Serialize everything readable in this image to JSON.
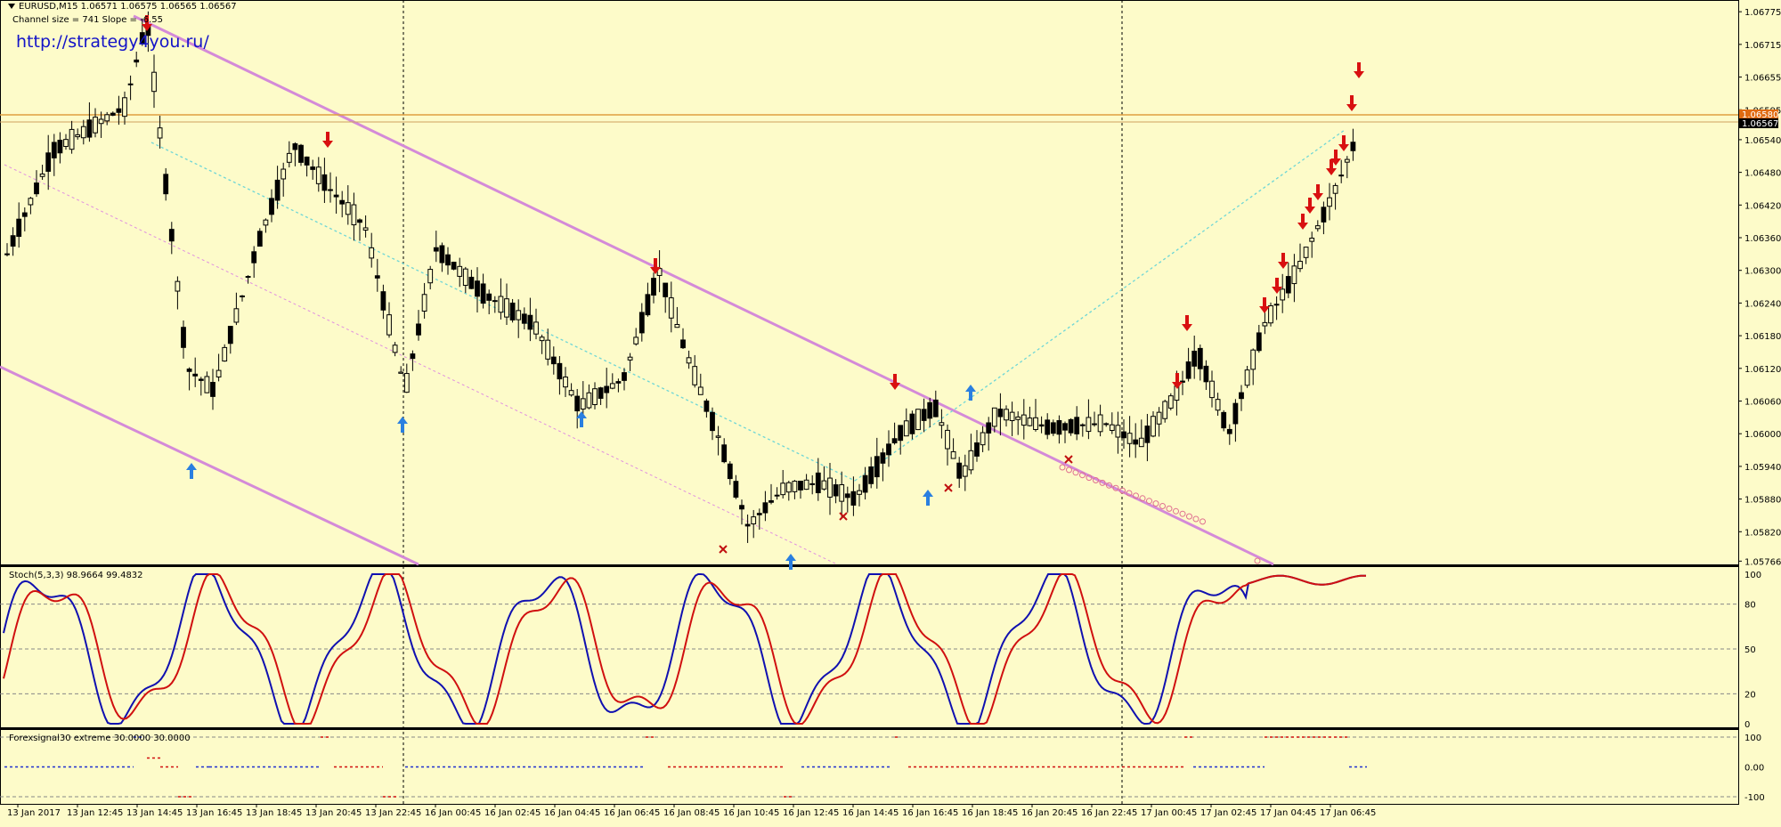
{
  "header": {
    "symbol_line": "EURUSD,M15  1.06571 1.06575 1.06565 1.06567",
    "channel_info": "Channel size = 741 Slope = -6.55",
    "website": "http://strategy4you.ru/"
  },
  "colors": {
    "background": "#fdfbc9",
    "channel_line": "#d48ad8",
    "mid_line": "#6ed6d6",
    "stoch_main": "#1010b0",
    "stoch_signal": "#d01010",
    "fs_blue": "#2030d0",
    "fs_red": "#d01010",
    "sell_arrow": "#d81010",
    "buy_arrow": "#2a7fe0",
    "price_line": "#e0a040"
  },
  "price_axis": {
    "labels": [
      "1.06775",
      "1.06715",
      "1.06655",
      "1.06595",
      "1.06540",
      "1.06480",
      "1.06420",
      "1.06360",
      "1.06300",
      "1.06240",
      "1.06180",
      "1.06120",
      "1.06060",
      "1.06000",
      "1.05940",
      "1.05880",
      "1.05820",
      "1.05766"
    ],
    "current_price": "1.06567",
    "high_marker": "1.06580",
    "range": [
      1.0576,
      1.0679
    ]
  },
  "time_axis": {
    "labels": [
      "13 Jan 2017",
      "13 Jan 12:45",
      "13 Jan 14:45",
      "13 Jan 16:45",
      "13 Jan 18:45",
      "13 Jan 20:45",
      "13 Jan 22:45",
      "16 Jan 00:45",
      "16 Jan 02:45",
      "16 Jan 04:45",
      "16 Jan 06:45",
      "16 Jan 08:45",
      "16 Jan 10:45",
      "16 Jan 12:45",
      "16 Jan 14:45",
      "16 Jan 16:45",
      "16 Jan 18:45",
      "16 Jan 20:45",
      "16 Jan 22:45",
      "17 Jan 00:45",
      "17 Jan 02:45",
      "17 Jan 04:45",
      "17 Jan 06:45"
    ]
  },
  "stochastic": {
    "label": "Stoch(5,3,3) 98.9664 99.4832",
    "levels": [
      "100",
      "80",
      "50",
      "20",
      "0"
    ]
  },
  "forexsignal": {
    "label": "Forexsignal30 extreme 30.0000 30.0000",
    "levels": [
      "100",
      "0.00",
      "-100"
    ]
  }
}
